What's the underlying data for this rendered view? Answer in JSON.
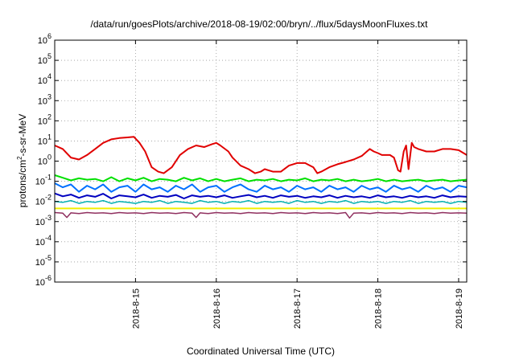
{
  "chart_data": {
    "type": "line",
    "title": "/data/run/goesPlots/archive/2018-08-19/02:00/bryn/../flux/5daysMoonFluxes.txt",
    "xlabel": "Coordinated Universal Time (UTC)",
    "ylabel": "protons/cm2-s-sr-MeV",
    "yscale": "log",
    "ylim_exp": [
      -6,
      6
    ],
    "xlim": [
      14.0,
      19.1
    ],
    "x_ticks": [
      {
        "value": 15,
        "label": "2018-8-15"
      },
      {
        "value": 16,
        "label": "2018-8-16"
      },
      {
        "value": 17,
        "label": "2018-8-17"
      },
      {
        "value": 18,
        "label": "2018-8-18"
      },
      {
        "value": 19,
        "label": "2018-8-19"
      }
    ],
    "y_ticks": [
      {
        "value": 1e-06,
        "base": "10",
        "exp": "-6"
      },
      {
        "value": 1e-05,
        "base": "10",
        "exp": "-5"
      },
      {
        "value": 0.0001,
        "base": "10",
        "exp": "-4"
      },
      {
        "value": 0.001,
        "base": "10",
        "exp": "-3"
      },
      {
        "value": 0.01,
        "base": "10",
        "exp": "-2"
      },
      {
        "value": 0.1,
        "base": "10",
        "exp": "-1"
      },
      {
        "value": 1,
        "base": "10",
        "exp": "0"
      },
      {
        "value": 10,
        "base": "10",
        "exp": "1"
      },
      {
        "value": 100,
        "base": "10",
        "exp": "2"
      },
      {
        "value": 1000,
        "base": "10",
        "exp": "3"
      },
      {
        "value": 10000,
        "base": "10",
        "exp": "4"
      },
      {
        "value": 100000,
        "base": "10",
        "exp": "5"
      },
      {
        "value": 1000000,
        "base": "10",
        "exp": "6"
      }
    ],
    "grid": true,
    "series": [
      {
        "color": "#e00000",
        "width": 2,
        "x": [
          14.0,
          14.1,
          14.2,
          14.3,
          14.4,
          14.5,
          14.6,
          14.7,
          14.8,
          14.9,
          14.98,
          15.05,
          15.12,
          15.2,
          15.28,
          15.35,
          15.45,
          15.55,
          15.65,
          15.75,
          15.85,
          15.95,
          16.0,
          16.05,
          16.15,
          16.2,
          16.3,
          16.4,
          16.48,
          16.55,
          16.6,
          16.7,
          16.8,
          16.9,
          17.0,
          17.1,
          17.2,
          17.25,
          17.3,
          17.4,
          17.5,
          17.6,
          17.7,
          17.8,
          17.9,
          17.95,
          18.0,
          18.05,
          18.15,
          18.2,
          18.25,
          18.28,
          18.32,
          18.35,
          18.38,
          18.42,
          18.45,
          18.5,
          18.6,
          18.7,
          18.8,
          18.9,
          19.0,
          19.1
        ],
        "y": [
          6,
          4,
          1.5,
          1.2,
          2,
          4,
          8,
          12,
          14,
          15,
          16,
          8,
          3,
          0.5,
          0.3,
          0.25,
          0.5,
          2,
          4,
          6,
          5,
          7,
          8,
          6,
          3,
          1.5,
          0.6,
          0.4,
          0.25,
          0.3,
          0.4,
          0.3,
          0.3,
          0.6,
          0.8,
          0.8,
          0.5,
          0.25,
          0.3,
          0.5,
          0.7,
          0.9,
          1.2,
          1.8,
          4,
          3,
          2.5,
          2,
          2,
          1.5,
          0.35,
          0.3,
          3,
          6,
          0.4,
          8,
          5,
          4,
          3,
          3,
          4,
          4,
          3.5,
          2
        ]
      },
      {
        "color": "#00e000",
        "width": 2,
        "x": [
          14.0,
          14.1,
          14.2,
          14.3,
          14.4,
          14.5,
          14.6,
          14.7,
          14.8,
          14.9,
          15.0,
          15.1,
          15.2,
          15.3,
          15.4,
          15.5,
          15.6,
          15.7,
          15.8,
          15.9,
          16.0,
          16.1,
          16.2,
          16.3,
          16.4,
          16.5,
          16.6,
          16.7,
          16.8,
          16.9,
          17.0,
          17.1,
          17.2,
          17.3,
          17.4,
          17.5,
          17.6,
          17.7,
          17.8,
          17.9,
          18.0,
          18.1,
          18.2,
          18.3,
          18.4,
          18.5,
          18.6,
          18.7,
          18.8,
          18.9,
          19.0,
          19.1
        ],
        "y": [
          0.2,
          0.15,
          0.11,
          0.14,
          0.12,
          0.13,
          0.1,
          0.16,
          0.1,
          0.14,
          0.11,
          0.15,
          0.1,
          0.13,
          0.12,
          0.1,
          0.15,
          0.11,
          0.14,
          0.1,
          0.13,
          0.1,
          0.12,
          0.14,
          0.1,
          0.12,
          0.11,
          0.13,
          0.1,
          0.12,
          0.11,
          0.14,
          0.1,
          0.12,
          0.11,
          0.13,
          0.1,
          0.12,
          0.1,
          0.11,
          0.13,
          0.1,
          0.12,
          0.1,
          0.11,
          0.12,
          0.1,
          0.11,
          0.12,
          0.1,
          0.11,
          0.12
        ]
      },
      {
        "color": "#0070ff",
        "width": 2,
        "x": [
          14.0,
          14.1,
          14.2,
          14.3,
          14.4,
          14.5,
          14.6,
          14.7,
          14.8,
          14.9,
          15.0,
          15.1,
          15.2,
          15.3,
          15.4,
          15.5,
          15.6,
          15.7,
          15.8,
          15.9,
          16.0,
          16.1,
          16.2,
          16.3,
          16.4,
          16.5,
          16.6,
          16.7,
          16.8,
          16.9,
          17.0,
          17.1,
          17.2,
          17.3,
          17.4,
          17.5,
          17.6,
          17.7,
          17.8,
          17.9,
          18.0,
          18.1,
          18.2,
          18.3,
          18.4,
          18.5,
          18.6,
          18.7,
          18.8,
          18.9,
          19.0,
          19.1
        ],
        "y": [
          0.08,
          0.05,
          0.07,
          0.03,
          0.06,
          0.04,
          0.07,
          0.03,
          0.05,
          0.06,
          0.03,
          0.07,
          0.04,
          0.05,
          0.03,
          0.06,
          0.04,
          0.07,
          0.03,
          0.05,
          0.06,
          0.03,
          0.05,
          0.07,
          0.04,
          0.03,
          0.06,
          0.04,
          0.05,
          0.03,
          0.06,
          0.04,
          0.05,
          0.03,
          0.06,
          0.04,
          0.05,
          0.03,
          0.06,
          0.04,
          0.05,
          0.03,
          0.06,
          0.04,
          0.05,
          0.03,
          0.06,
          0.04,
          0.05,
          0.03,
          0.06,
          0.05
        ]
      },
      {
        "color": "#0000c0",
        "width": 2,
        "x": [
          14.0,
          14.1,
          14.2,
          14.3,
          14.4,
          14.5,
          14.6,
          14.7,
          14.8,
          14.9,
          15.0,
          15.1,
          15.2,
          15.3,
          15.4,
          15.5,
          15.6,
          15.7,
          15.8,
          15.9,
          16.0,
          16.1,
          16.2,
          16.3,
          16.4,
          16.5,
          16.6,
          16.7,
          16.8,
          16.9,
          17.0,
          17.1,
          17.2,
          17.3,
          17.4,
          17.5,
          17.6,
          17.7,
          17.8,
          17.9,
          18.0,
          18.1,
          18.2,
          18.3,
          18.4,
          18.5,
          18.6,
          18.7,
          18.8,
          18.9,
          19.0,
          19.1
        ],
        "y": [
          0.025,
          0.018,
          0.022,
          0.015,
          0.02,
          0.017,
          0.024,
          0.014,
          0.02,
          0.018,
          0.016,
          0.022,
          0.015,
          0.019,
          0.017,
          0.021,
          0.014,
          0.02,
          0.017,
          0.019,
          0.016,
          0.02,
          0.015,
          0.018,
          0.021,
          0.016,
          0.019,
          0.015,
          0.02,
          0.017,
          0.019,
          0.015,
          0.018,
          0.016,
          0.02,
          0.015,
          0.019,
          0.016,
          0.018,
          0.015,
          0.02,
          0.016,
          0.018,
          0.015,
          0.019,
          0.016,
          0.018,
          0.015,
          0.02,
          0.016,
          0.018,
          0.017
        ]
      },
      {
        "color": "#00b0b0",
        "width": 1.5,
        "x": [
          14.0,
          14.1,
          14.2,
          14.3,
          14.4,
          14.5,
          14.6,
          14.7,
          14.8,
          14.9,
          15.0,
          15.1,
          15.2,
          15.3,
          15.4,
          15.5,
          15.6,
          15.7,
          15.8,
          15.9,
          16.0,
          16.1,
          16.2,
          16.3,
          16.4,
          16.5,
          16.6,
          16.7,
          16.8,
          16.9,
          17.0,
          17.1,
          17.2,
          17.3,
          17.4,
          17.5,
          17.6,
          17.7,
          17.8,
          17.9,
          18.0,
          18.1,
          18.2,
          18.3,
          18.4,
          18.5,
          18.6,
          18.7,
          18.8,
          18.9,
          19.0,
          19.1
        ],
        "y": [
          0.01,
          0.009,
          0.011,
          0.008,
          0.01,
          0.009,
          0.011,
          0.008,
          0.01,
          0.009,
          0.008,
          0.01,
          0.009,
          0.011,
          0.008,
          0.01,
          0.009,
          0.008,
          0.011,
          0.009,
          0.01,
          0.008,
          0.01,
          0.009,
          0.011,
          0.008,
          0.01,
          0.009,
          0.01,
          0.008,
          0.011,
          0.009,
          0.01,
          0.008,
          0.01,
          0.009,
          0.011,
          0.008,
          0.01,
          0.009,
          0.01,
          0.008,
          0.01,
          0.009,
          0.011,
          0.008,
          0.01,
          0.009,
          0.01,
          0.008,
          0.01,
          0.009
        ]
      },
      {
        "color": "#f0f000",
        "width": 2,
        "x": [
          14.0,
          14.5,
          15.0,
          15.5,
          16.0,
          16.5,
          17.0,
          17.5,
          18.0,
          18.5,
          19.0,
          19.1
        ],
        "y": [
          0.0045,
          0.0045,
          0.0045,
          0.0045,
          0.0045,
          0.0045,
          0.0045,
          0.0045,
          0.0045,
          0.0045,
          0.0045,
          0.0045
        ]
      },
      {
        "color": "#903060",
        "width": 1.5,
        "x": [
          14.0,
          14.1,
          14.15,
          14.2,
          14.3,
          14.4,
          14.5,
          14.6,
          14.7,
          14.8,
          14.9,
          15.0,
          15.1,
          15.2,
          15.3,
          15.4,
          15.5,
          15.6,
          15.7,
          15.75,
          15.8,
          15.9,
          16.0,
          16.1,
          16.2,
          16.3,
          16.4,
          16.5,
          16.6,
          16.7,
          16.8,
          16.9,
          17.0,
          17.1,
          17.2,
          17.3,
          17.4,
          17.5,
          17.6,
          17.65,
          17.7,
          17.8,
          17.9,
          18.0,
          18.1,
          18.2,
          18.3,
          18.4,
          18.5,
          18.6,
          18.7,
          18.8,
          18.9,
          19.0,
          19.1
        ],
        "y": [
          0.0028,
          0.0026,
          0.0016,
          0.0027,
          0.0025,
          0.0028,
          0.0026,
          0.0027,
          0.0025,
          0.0028,
          0.0026,
          0.0027,
          0.0025,
          0.0028,
          0.0026,
          0.0027,
          0.0025,
          0.0028,
          0.0026,
          0.0016,
          0.0027,
          0.0025,
          0.0028,
          0.0026,
          0.0027,
          0.0025,
          0.0028,
          0.0026,
          0.0027,
          0.0025,
          0.0028,
          0.0026,
          0.0027,
          0.0025,
          0.0028,
          0.0026,
          0.0027,
          0.0025,
          0.0028,
          0.0015,
          0.0026,
          0.0027,
          0.0025,
          0.0028,
          0.0026,
          0.0027,
          0.0025,
          0.0028,
          0.0026,
          0.0027,
          0.0025,
          0.0028,
          0.0026,
          0.0027,
          0.0026
        ]
      }
    ]
  }
}
